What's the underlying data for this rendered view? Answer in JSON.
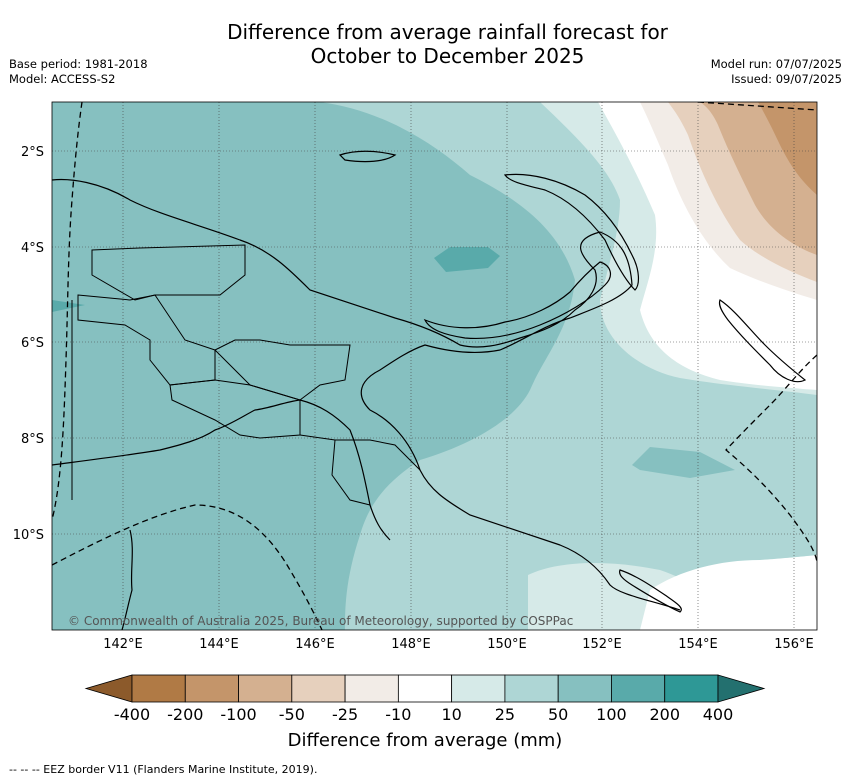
{
  "title_line1": "Difference from average rainfall forecast for",
  "title_line2": "October to December 2025",
  "meta_left": [
    "Base period: 1981-2018",
    "Model: ACCESS-S2"
  ],
  "meta_right": [
    "Model run: 07/07/2025",
    "Issued: 09/07/2025"
  ],
  "latitudes": [
    "2°S",
    "4°S",
    "6°S",
    "8°S",
    "10°S"
  ],
  "longitudes": [
    "142°E",
    "144°E",
    "146°E",
    "148°E",
    "150°E",
    "152°E",
    "154°E",
    "156°E"
  ],
  "copyright": "© Commonwealth of Australia 2025, Bureau of Meteorology, supported by COSPPac",
  "colorbar": {
    "ticks": [
      "-400",
      "-200",
      "-100",
      "-50",
      "-25",
      "-10",
      "10",
      "25",
      "50",
      "100",
      "200",
      "400"
    ],
    "colors": [
      "#8c5a2b",
      "#b07a45",
      "#c4956a",
      "#d4b090",
      "#e6d0bd",
      "#f2ece7",
      "#ffffff",
      "#d6eae8",
      "#aed6d5",
      "#86c0c0",
      "#59aaaa",
      "#2e9896",
      "#23706f"
    ],
    "title": "Difference from average (mm)"
  },
  "footnote": "--  --  -- EEZ border V11 (Flanders Marine Institute, 2019)."
}
